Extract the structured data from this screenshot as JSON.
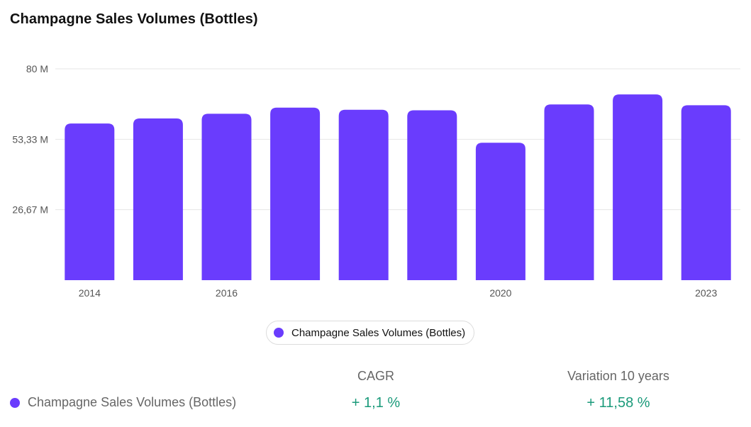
{
  "title": "Champagne Sales Volumes (Bottles)",
  "colors": {
    "bar": "#6a3cfd",
    "grid": "#e6e6e6",
    "axis_text": "#555555",
    "positive": "#1a9a7a"
  },
  "chart_data": {
    "type": "bar",
    "title": "Champagne Sales Volumes (Bottles)",
    "categories": [
      "2014",
      "2015",
      "2016",
      "2017",
      "2018",
      "2019",
      "2020",
      "2021",
      "2022",
      "2023"
    ],
    "x_tick_labels": [
      "2014",
      "",
      "2016",
      "",
      "",
      "",
      "2020",
      "",
      "",
      "2023"
    ],
    "series": [
      {
        "name": "Champagne Sales Volumes (Bottles)",
        "values": [
          59.3,
          61.2,
          63.0,
          65.3,
          64.5,
          64.3,
          52.0,
          66.5,
          70.3,
          66.2
        ]
      }
    ],
    "ylim": [
      0,
      80
    ],
    "y_ticks": [
      26.67,
      53.33,
      80
    ],
    "y_tick_labels": [
      "26,67 M",
      "53,33 M",
      "80 M"
    ],
    "grid": true,
    "legend": "bottom-center"
  },
  "legend": {
    "label": "Champagne Sales Volumes (Bottles)"
  },
  "stats": {
    "headers": [
      "CAGR",
      "Variation 10 years"
    ],
    "row": {
      "label": "Champagne Sales Volumes (Bottles)",
      "values": [
        "+ 1,1 %",
        "+ 11,58 %"
      ]
    }
  }
}
